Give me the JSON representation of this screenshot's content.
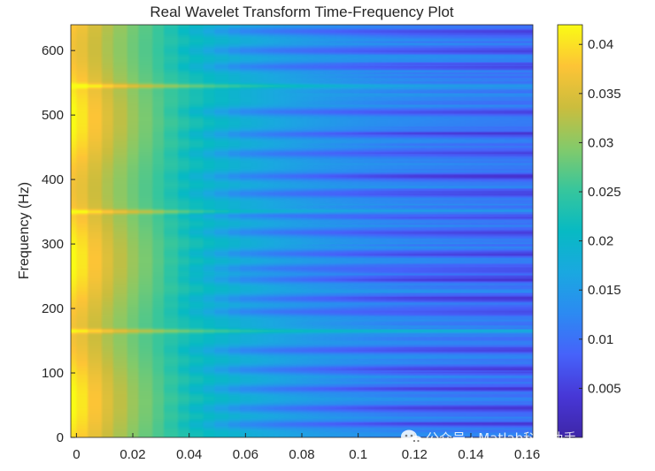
{
  "chart_data": {
    "type": "heatmap",
    "title": "Real Wavelet Transform Time-Frequency Plot",
    "xlabel": "",
    "ylabel": "Frequency (Hz)",
    "xlim": [
      -0.002,
      0.162
    ],
    "ylim": [
      0,
      640
    ],
    "x_ticks": [
      0,
      0.02,
      0.04,
      0.06,
      0.08,
      0.1,
      0.12,
      0.14,
      0.16
    ],
    "x_tick_labels": [
      "0",
      "0.02",
      "0.04",
      "0.06",
      "0.08",
      "0.1",
      "0.12",
      "0.14",
      "0.16"
    ],
    "y_ticks": [
      0,
      100,
      200,
      300,
      400,
      500,
      600
    ],
    "y_tick_labels": [
      "0",
      "100",
      "200",
      "300",
      "400",
      "500",
      "600"
    ],
    "colormap": "parula",
    "colorbar": {
      "range": [
        0,
        0.042
      ],
      "ticks": [
        0.005,
        0.01,
        0.015,
        0.02,
        0.025,
        0.03,
        0.035,
        0.04
      ],
      "tick_labels": [
        "0.005",
        "0.01",
        "0.015",
        "0.02",
        "0.025",
        "0.03",
        "0.035",
        "0.04"
      ]
    },
    "grid": false,
    "bright_bands_hz": [
      165,
      350,
      545
    ],
    "dark_bands_hz": [
      20,
      45,
      75,
      105,
      135,
      195,
      215,
      245,
      262,
      285,
      318,
      345,
      378,
      405,
      440,
      470,
      505,
      575,
      600,
      630
    ],
    "upper_region_boundary_hz": 470,
    "lower_region_boundary_hz": 260,
    "energy_profile_start": 0.03,
    "energy_profile_decay_s": 0.05
  },
  "watermark": {
    "text": "公众号 · Matlab科研助手",
    "icon": "wechat-icon"
  },
  "colors": {
    "background": "#ffffff",
    "axis": "#262626"
  }
}
